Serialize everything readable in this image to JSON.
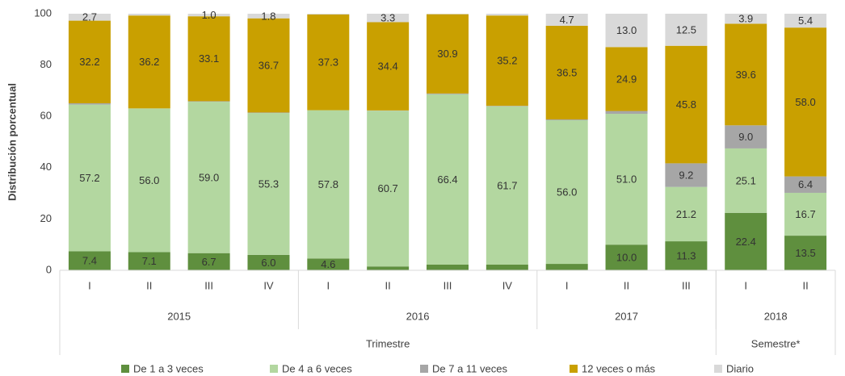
{
  "chart_data": {
    "type": "stacked_bar",
    "y_label": "Distribución porcentual",
    "categories": [
      "I",
      "II",
      "III",
      "IV",
      "I",
      "II",
      "III",
      "IV",
      "I",
      "II",
      "III",
      "I",
      "II"
    ],
    "x_groups": [
      {
        "label": "2015",
        "count": 4
      },
      {
        "label": "2016",
        "count": 4
      },
      {
        "label": "2017",
        "count": 3
      },
      {
        "label": "2018",
        "count": 2
      }
    ],
    "x_supergroups": [
      {
        "label": "Trimestre",
        "count": 11
      },
      {
        "label": "Semestre*",
        "count": 2
      }
    ],
    "ylim": [
      0,
      100
    ],
    "yticks": [
      0,
      20,
      40,
      60,
      80,
      100
    ],
    "series": [
      {
        "name": "De 1 a 3 veces",
        "color": "#5f8f3e",
        "values": [
          7.4,
          7.1,
          6.7,
          6.0,
          4.6,
          1.5,
          2.2,
          2.2,
          2.5,
          10.0,
          11.3,
          22.4,
          13.5
        ],
        "value_labels": [
          "7.4",
          "7.1",
          "6.7",
          "6.0",
          "4.6",
          null,
          null,
          null,
          null,
          "10.0",
          "11.3",
          "22.4",
          "13.5"
        ]
      },
      {
        "name": "De 4 a 6 veces",
        "color": "#b3d7a0",
        "values": [
          57.2,
          56.0,
          59.0,
          55.3,
          57.8,
          60.7,
          66.4,
          61.7,
          56.0,
          51.0,
          21.2,
          25.1,
          16.7
        ],
        "value_labels": [
          "57.2",
          "56.0",
          "59.0",
          "55.3",
          "57.8",
          "60.7",
          "66.4",
          "61.7",
          "56.0",
          "51.0",
          "21.2",
          "25.1",
          "16.7"
        ]
      },
      {
        "name": "De 7 a 11 veces",
        "color": "#a6a6a6",
        "values": [
          0.5,
          0,
          0.2,
          0.2,
          0,
          0.1,
          0.3,
          0.2,
          0.3,
          1.1,
          9.2,
          9.0,
          6.4
        ],
        "value_labels": [
          null,
          null,
          null,
          null,
          null,
          null,
          null,
          null,
          null,
          null,
          "9.2",
          "9.0",
          "6.4"
        ]
      },
      {
        "name": "12 veces o más",
        "color": "#c9a000",
        "values": [
          32.2,
          36.2,
          33.1,
          36.7,
          37.3,
          34.4,
          30.9,
          35.2,
          36.5,
          24.9,
          45.8,
          39.6,
          58.0
        ],
        "value_labels": [
          "32.2",
          "36.2",
          "33.1",
          "36.7",
          "37.3",
          "34.4",
          "30.9",
          "35.2",
          "36.5",
          "24.9",
          "45.8",
          "39.6",
          "58.0"
        ]
      },
      {
        "name": "Diario",
        "color": "#d9d9d9",
        "values": [
          2.7,
          0.7,
          1.0,
          1.8,
          0.3,
          3.3,
          0.2,
          0.7,
          4.7,
          13.0,
          12.5,
          3.9,
          5.4
        ],
        "value_labels": [
          "2.7",
          null,
          "1.0",
          "1.8",
          null,
          "3.3",
          null,
          null,
          "4.7",
          "13.0",
          "12.5",
          "3.9",
          "5.4"
        ]
      }
    ]
  }
}
